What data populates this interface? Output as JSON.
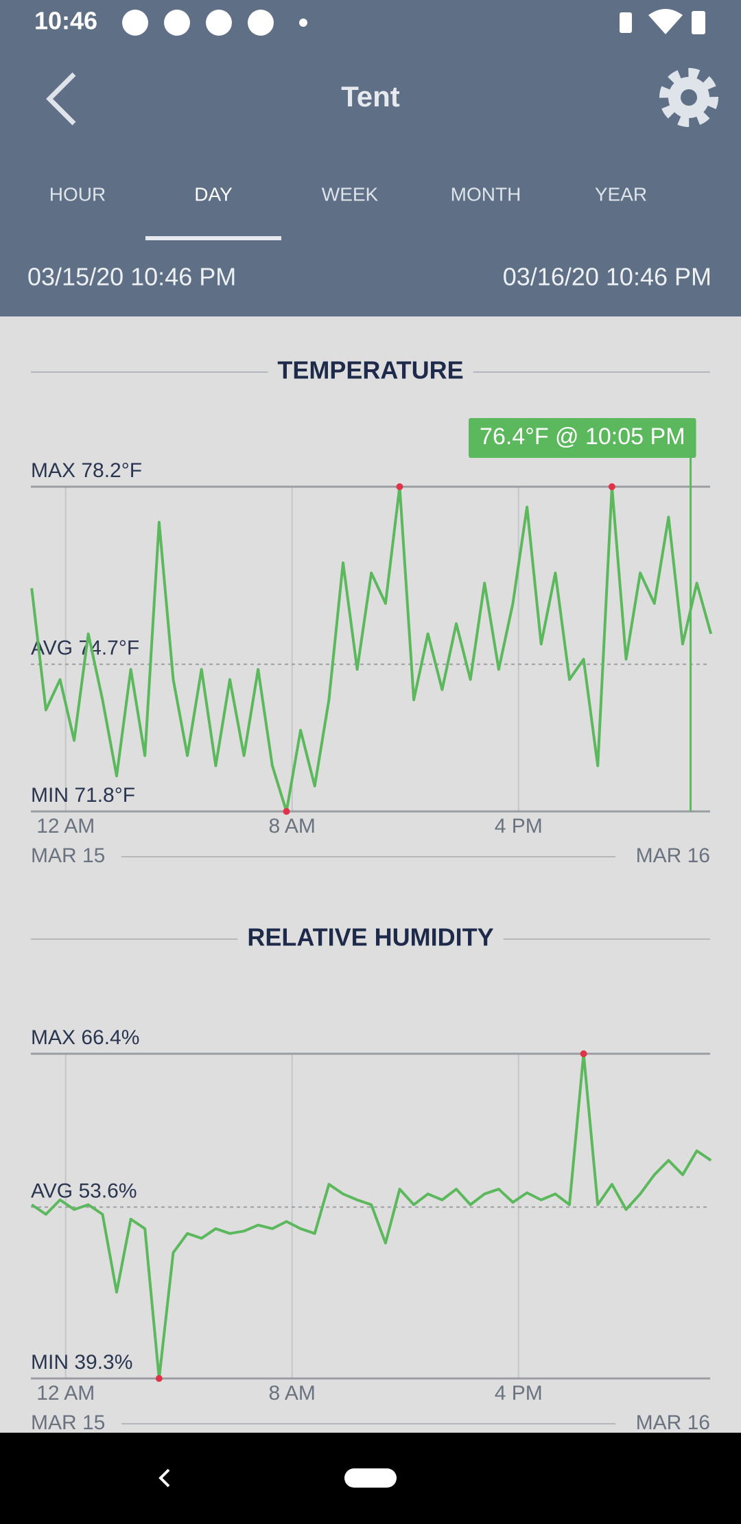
{
  "status_bar": {
    "time": "10:46"
  },
  "header": {
    "title": "Tent"
  },
  "tabs": {
    "items": [
      "HOUR",
      "DAY",
      "WEEK",
      "MONTH",
      "YEAR"
    ],
    "active": 1
  },
  "range": {
    "start": "03/15/20 10:46 PM",
    "end": "03/16/20 10:46 PM"
  },
  "charts": [
    {
      "type": "line",
      "title": "TEMPERATURE",
      "color": "#5cb85c",
      "extreme_color": "#e0334a",
      "max": {
        "value": 78.2,
        "label": "MAX 78.2°F"
      },
      "avg": {
        "value": 74.7,
        "label": "AVG 74.7°F"
      },
      "min": {
        "value": 71.8,
        "label": "MIN 71.8°F"
      },
      "tooltip": {
        "label": "76.4°F @ 10:05 PM",
        "value": 76.4,
        "x": 22.08
      },
      "xlim": [
        -1.23,
        22.77
      ],
      "xticks": [
        {
          "value": 0,
          "label": "12 AM"
        },
        {
          "value": 8,
          "label": "8 AM"
        },
        {
          "value": 16,
          "label": "4 PM"
        }
      ],
      "dates": [
        "MAR 15",
        "MAR 16"
      ],
      "x": [
        -1.2,
        -0.7,
        -0.2,
        0.3,
        0.8,
        1.3,
        1.8,
        2.3,
        2.8,
        3.3,
        3.8,
        4.3,
        4.8,
        5.3,
        5.8,
        6.3,
        6.8,
        7.3,
        7.8,
        8.3,
        8.8,
        9.3,
        9.8,
        10.3,
        10.8,
        11.3,
        11.8,
        12.3,
        12.8,
        13.3,
        13.8,
        14.3,
        14.8,
        15.3,
        15.8,
        16.3,
        16.8,
        17.3,
        17.8,
        18.3,
        18.8,
        19.3,
        19.8,
        20.3,
        20.8,
        21.3,
        21.8,
        22.3,
        22.8
      ],
      "values": [
        76.2,
        73.8,
        74.4,
        73.2,
        75.3,
        74.0,
        72.5,
        74.6,
        72.9,
        77.5,
        74.4,
        72.9,
        74.6,
        72.7,
        74.4,
        72.9,
        74.6,
        72.7,
        71.8,
        73.4,
        72.3,
        74.0,
        76.7,
        74.6,
        76.5,
        75.9,
        78.2,
        74.0,
        75.3,
        74.2,
        75.5,
        74.4,
        76.3,
        74.6,
        75.9,
        77.8,
        75.1,
        76.5,
        74.4,
        74.8,
        72.7,
        78.2,
        74.8,
        76.5,
        75.9,
        77.6,
        75.1,
        76.3,
        75.3
      ]
    },
    {
      "type": "line",
      "title": "RELATIVE HUMIDITY",
      "color": "#5cb85c",
      "extreme_color": "#e0334a",
      "max": {
        "value": 66.4,
        "label": "MAX 66.4%"
      },
      "avg": {
        "value": 53.6,
        "label": "AVG 53.6%"
      },
      "min": {
        "value": 39.3,
        "label": "MIN 39.3%"
      },
      "xlim": [
        -1.23,
        22.77
      ],
      "xticks": [
        {
          "value": 0,
          "label": "12 AM"
        },
        {
          "value": 8,
          "label": "8 AM"
        },
        {
          "value": 16,
          "label": "4 PM"
        }
      ],
      "dates": [
        "MAR 15",
        "MAR 16"
      ],
      "x": [
        -1.2,
        -0.7,
        -0.2,
        0.3,
        0.8,
        1.3,
        1.8,
        2.3,
        2.8,
        3.3,
        3.8,
        4.3,
        4.8,
        5.3,
        5.8,
        6.3,
        6.8,
        7.3,
        7.8,
        8.3,
        8.8,
        9.3,
        9.8,
        10.3,
        10.8,
        11.3,
        11.8,
        12.3,
        12.8,
        13.3,
        13.8,
        14.3,
        14.8,
        15.3,
        15.8,
        16.3,
        16.8,
        17.3,
        17.8,
        18.3,
        18.8,
        19.3,
        19.8,
        20.3,
        20.8,
        21.3,
        21.8,
        22.3,
        22.8
      ],
      "values": [
        53.8,
        53.0,
        54.2,
        53.4,
        53.8,
        53.0,
        46.5,
        52.6,
        51.8,
        39.3,
        49.8,
        51.4,
        51.0,
        51.8,
        51.4,
        51.6,
        52.1,
        51.8,
        52.4,
        51.8,
        51.4,
        55.5,
        54.7,
        54.2,
        53.8,
        50.6,
        55.1,
        53.8,
        54.7,
        54.2,
        55.1,
        53.8,
        54.7,
        55.1,
        54.0,
        54.8,
        54.2,
        54.7,
        53.8,
        66.4,
        53.8,
        55.5,
        53.4,
        54.7,
        56.3,
        57.5,
        56.3,
        58.3,
        57.5
      ]
    }
  ]
}
